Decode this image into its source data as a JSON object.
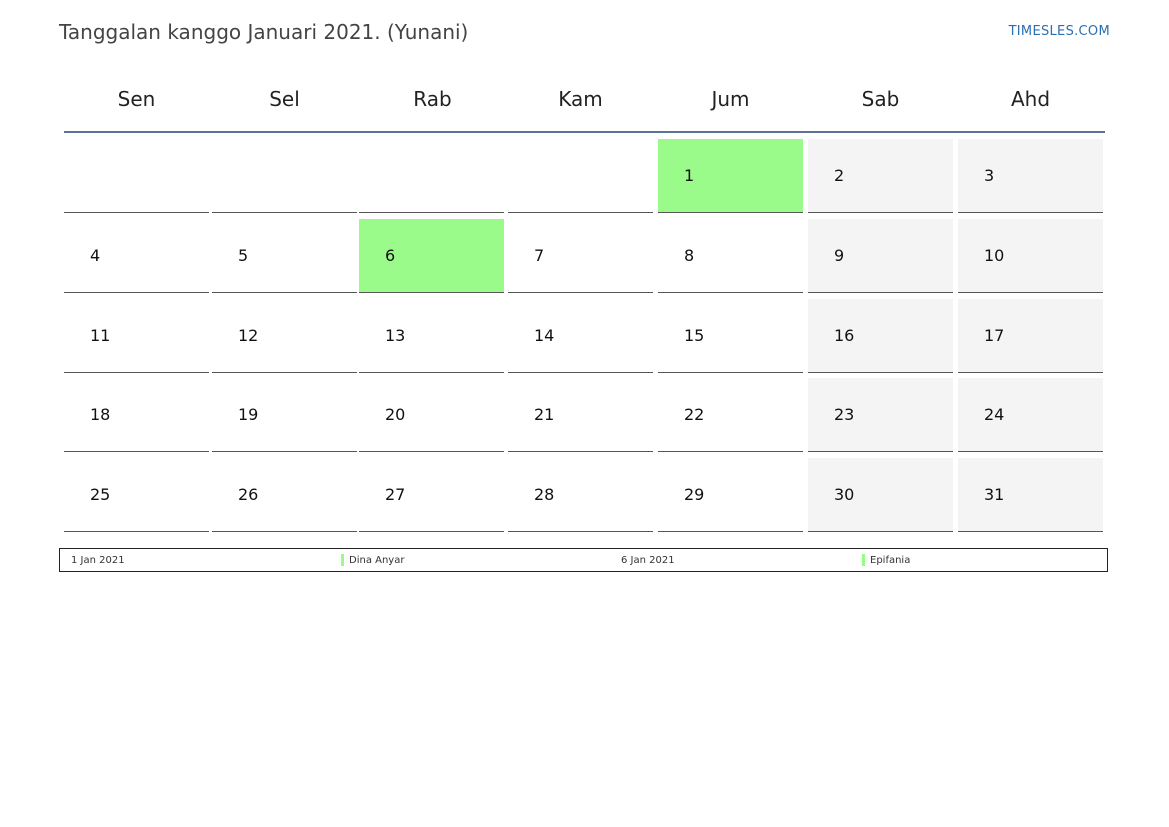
{
  "header": {
    "title": "Tanggalan kanggo Januari 2021. (Yunani)",
    "site": "TIMESLES.COM"
  },
  "calendar": {
    "weekdays": [
      "Sen",
      "Sel",
      "Rab",
      "Kam",
      "Jum",
      "Sab",
      "Ahd"
    ],
    "weeks": [
      [
        "",
        "",
        "",
        "",
        "1",
        "2",
        "3"
      ],
      [
        "4",
        "5",
        "6",
        "7",
        "8",
        "9",
        "10"
      ],
      [
        "11",
        "12",
        "13",
        "14",
        "15",
        "16",
        "17"
      ],
      [
        "18",
        "19",
        "20",
        "21",
        "22",
        "23",
        "24"
      ],
      [
        "25",
        "26",
        "27",
        "28",
        "29",
        "30",
        "31"
      ]
    ],
    "holidays": [
      "1",
      "6"
    ],
    "weekend_columns": [
      5,
      6
    ],
    "colors": {
      "holiday": "#9afa8a",
      "weekend": "#f4f4f4",
      "header_line": "#5a7396",
      "site_link": "#2a6fb0"
    }
  },
  "legend": {
    "items": [
      {
        "date": "1 Jan 2021",
        "name": "Dina Anyar"
      },
      {
        "date": "6 Jan 2021",
        "name": "Epifania"
      }
    ]
  }
}
